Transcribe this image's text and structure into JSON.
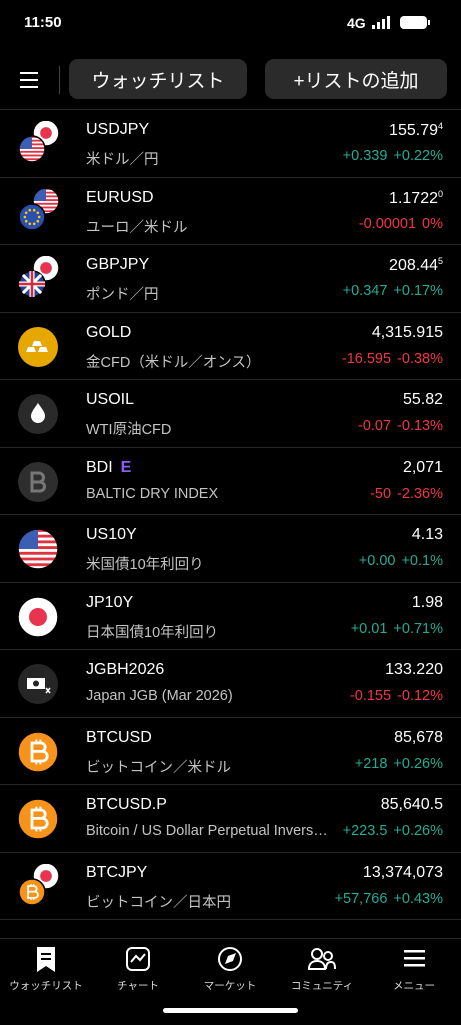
{
  "status_bar": {
    "time": "11:50",
    "network": "4G"
  },
  "toolbar": {
    "tab": "ウォッチリスト",
    "add_list": "+リストの追加"
  },
  "rows": [
    {
      "symbol": "USDJPY",
      "name": "米ドル／円",
      "price": "155.79",
      "price_sup": "4",
      "change": "+0.339",
      "change_pct": "+0.22%"
    },
    {
      "symbol": "EURUSD",
      "name": "ユーロ／米ドル",
      "price": "1.1722",
      "price_sup": "0",
      "change": "-0.00001",
      "change_pct": "0%"
    },
    {
      "symbol": "GBPJPY",
      "name": "ポンド／円",
      "price": "208.44",
      "price_sup": "5",
      "change": "+0.347",
      "change_pct": "+0.17%"
    },
    {
      "symbol": "GOLD",
      "name": "金CFD（米ドル／オンス）",
      "price": "4,315.915",
      "change": "-16.595",
      "change_pct": "-0.38%"
    },
    {
      "symbol": "USOIL",
      "name": "WTI原油CFD",
      "price": "55.82",
      "change": "-0.07",
      "change_pct": "-0.13%"
    },
    {
      "symbol": "BDI",
      "badge": "E",
      "name": "BALTIC DRY INDEX",
      "price": "2,071",
      "change": "-50",
      "change_pct": "-2.36%"
    },
    {
      "symbol": "US10Y",
      "name": "米国債10年利回り",
      "price": "4.13",
      "change": "+0.00",
      "change_pct": "+0.1%"
    },
    {
      "symbol": "JP10Y",
      "name": "日本国債10年利回り",
      "price": "1.98",
      "change": "+0.01",
      "change_pct": "+0.71%"
    },
    {
      "symbol": "JGBH2026",
      "name": "Japan JGB (Mar 2026)",
      "price": "133.220",
      "change": "-0.155",
      "change_pct": "-0.12%"
    },
    {
      "symbol": "BTCUSD",
      "name": "ビットコイン／米ドル",
      "price": "85,678",
      "change": "+218",
      "change_pct": "+0.26%"
    },
    {
      "symbol": "BTCUSD.P",
      "name": "Bitcoin / US Dollar Perpetual Inverse Swap Contract",
      "price": "85,640.5",
      "change": "+223.5",
      "change_pct": "+0.26%"
    },
    {
      "symbol": "BTCJPY",
      "name": "ビットコイン／日本円",
      "price": "13,374,073",
      "change": "+57,766",
      "change_pct": "+0.43%"
    }
  ],
  "nav": [
    "ウォッチリスト",
    "チャート",
    "マーケット",
    "コミュニティ",
    "メニュー"
  ]
}
